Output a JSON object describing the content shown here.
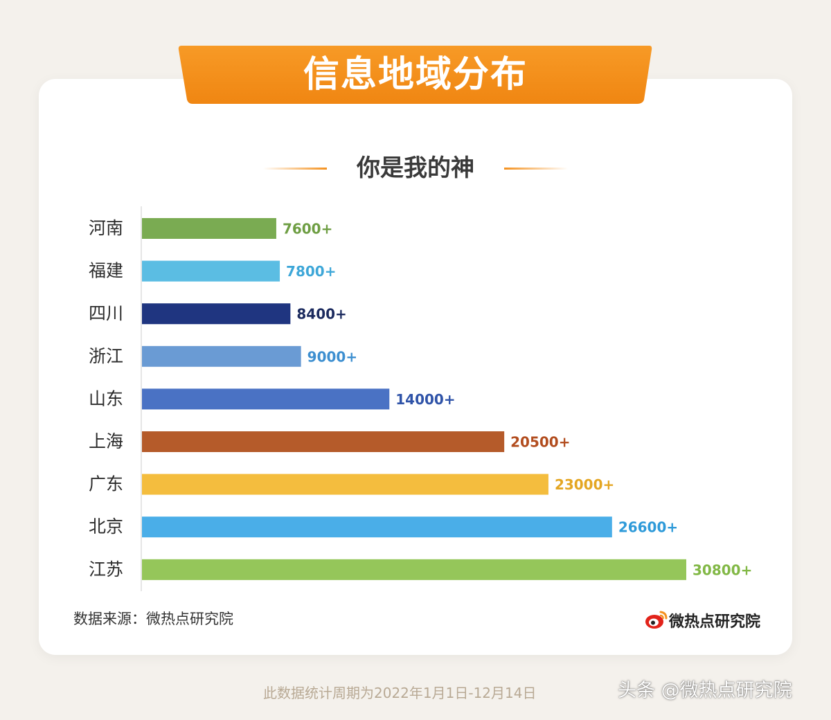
{
  "banner": {
    "title": "信息地域分布"
  },
  "chart_data": {
    "type": "bar",
    "orientation": "horizontal",
    "title": "你是我的神",
    "categories": [
      "河南",
      "福建",
      "四川",
      "浙江",
      "山东",
      "上海",
      "广东",
      "北京",
      "江苏"
    ],
    "values": [
      7600,
      7800,
      8400,
      9000,
      14000,
      20500,
      23000,
      26600,
      30800
    ],
    "value_labels": [
      "7600+",
      "7800+",
      "8400+",
      "9000+",
      "14000+",
      "20500+",
      "23000+",
      "26600+",
      "30800+"
    ],
    "bar_colors": [
      "#7aab52",
      "#5bbde3",
      "#1f3580",
      "#6a9bd4",
      "#4a72c4",
      "#b55b2a",
      "#f4bd3e",
      "#4aaee8",
      "#95c65a"
    ],
    "label_colors": [
      "#6e9e43",
      "#3ea7d8",
      "#1b2a5e",
      "#3d8fd0",
      "#2f53a8",
      "#b24d1f",
      "#e4a622",
      "#2e9ad9",
      "#82b846"
    ],
    "xlim": [
      0,
      31000
    ],
    "grid": false,
    "legend": "none"
  },
  "source": {
    "text": "数据来源：微热点研究院"
  },
  "logo": {
    "text": "微热点研究院",
    "icon": "weibo-eye-icon"
  },
  "footnote": {
    "text": "此数据统计周期为2022年1月1日-12月14日"
  },
  "watermark": {
    "text": "头条 @微热点研究院"
  },
  "colors": {
    "banner": "#f4911e",
    "page_bg": "#f4f1ec",
    "card_bg": "#ffffff"
  }
}
